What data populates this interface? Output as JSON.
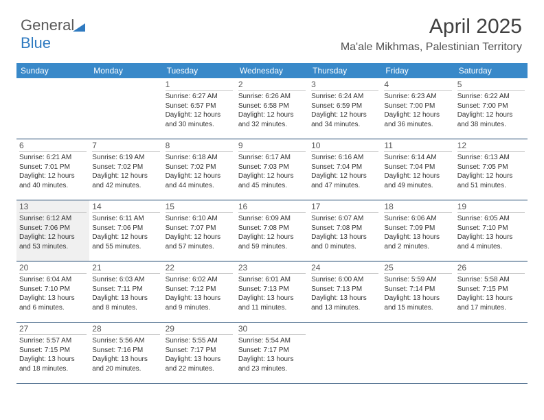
{
  "logo": {
    "word1": "General",
    "word2": "Blue"
  },
  "title": "April 2025",
  "subtitle": "Ma'ale Mikhmas, Palestinian Territory",
  "colors": {
    "header_bg": "#3989c9",
    "header_text": "#ffffff",
    "row_border": "#17406a",
    "shaded_bg": "#f0f0f0",
    "logo_blue": "#2f7ac0"
  },
  "day_headers": [
    "Sunday",
    "Monday",
    "Tuesday",
    "Wednesday",
    "Thursday",
    "Friday",
    "Saturday"
  ],
  "weeks": [
    [
      {
        "empty": true
      },
      {
        "empty": true
      },
      {
        "num": "1",
        "sunrise": "6:27 AM",
        "sunset": "6:57 PM",
        "daylight": "12 hours and 30 minutes."
      },
      {
        "num": "2",
        "sunrise": "6:26 AM",
        "sunset": "6:58 PM",
        "daylight": "12 hours and 32 minutes."
      },
      {
        "num": "3",
        "sunrise": "6:24 AM",
        "sunset": "6:59 PM",
        "daylight": "12 hours and 34 minutes."
      },
      {
        "num": "4",
        "sunrise": "6:23 AM",
        "sunset": "7:00 PM",
        "daylight": "12 hours and 36 minutes."
      },
      {
        "num": "5",
        "sunrise": "6:22 AM",
        "sunset": "7:00 PM",
        "daylight": "12 hours and 38 minutes."
      }
    ],
    [
      {
        "num": "6",
        "sunrise": "6:21 AM",
        "sunset": "7:01 PM",
        "daylight": "12 hours and 40 minutes."
      },
      {
        "num": "7",
        "sunrise": "6:19 AM",
        "sunset": "7:02 PM",
        "daylight": "12 hours and 42 minutes."
      },
      {
        "num": "8",
        "sunrise": "6:18 AM",
        "sunset": "7:02 PM",
        "daylight": "12 hours and 44 minutes."
      },
      {
        "num": "9",
        "sunrise": "6:17 AM",
        "sunset": "7:03 PM",
        "daylight": "12 hours and 45 minutes."
      },
      {
        "num": "10",
        "sunrise": "6:16 AM",
        "sunset": "7:04 PM",
        "daylight": "12 hours and 47 minutes."
      },
      {
        "num": "11",
        "sunrise": "6:14 AM",
        "sunset": "7:04 PM",
        "daylight": "12 hours and 49 minutes."
      },
      {
        "num": "12",
        "sunrise": "6:13 AM",
        "sunset": "7:05 PM",
        "daylight": "12 hours and 51 minutes."
      }
    ],
    [
      {
        "num": "13",
        "sunrise": "6:12 AM",
        "sunset": "7:06 PM",
        "daylight": "12 hours and 53 minutes.",
        "shaded": true
      },
      {
        "num": "14",
        "sunrise": "6:11 AM",
        "sunset": "7:06 PM",
        "daylight": "12 hours and 55 minutes."
      },
      {
        "num": "15",
        "sunrise": "6:10 AM",
        "sunset": "7:07 PM",
        "daylight": "12 hours and 57 minutes."
      },
      {
        "num": "16",
        "sunrise": "6:09 AM",
        "sunset": "7:08 PM",
        "daylight": "12 hours and 59 minutes."
      },
      {
        "num": "17",
        "sunrise": "6:07 AM",
        "sunset": "7:08 PM",
        "daylight": "13 hours and 0 minutes."
      },
      {
        "num": "18",
        "sunrise": "6:06 AM",
        "sunset": "7:09 PM",
        "daylight": "13 hours and 2 minutes."
      },
      {
        "num": "19",
        "sunrise": "6:05 AM",
        "sunset": "7:10 PM",
        "daylight": "13 hours and 4 minutes."
      }
    ],
    [
      {
        "num": "20",
        "sunrise": "6:04 AM",
        "sunset": "7:10 PM",
        "daylight": "13 hours and 6 minutes."
      },
      {
        "num": "21",
        "sunrise": "6:03 AM",
        "sunset": "7:11 PM",
        "daylight": "13 hours and 8 minutes."
      },
      {
        "num": "22",
        "sunrise": "6:02 AM",
        "sunset": "7:12 PM",
        "daylight": "13 hours and 9 minutes."
      },
      {
        "num": "23",
        "sunrise": "6:01 AM",
        "sunset": "7:13 PM",
        "daylight": "13 hours and 11 minutes."
      },
      {
        "num": "24",
        "sunrise": "6:00 AM",
        "sunset": "7:13 PM",
        "daylight": "13 hours and 13 minutes."
      },
      {
        "num": "25",
        "sunrise": "5:59 AM",
        "sunset": "7:14 PM",
        "daylight": "13 hours and 15 minutes."
      },
      {
        "num": "26",
        "sunrise": "5:58 AM",
        "sunset": "7:15 PM",
        "daylight": "13 hours and 17 minutes."
      }
    ],
    [
      {
        "num": "27",
        "sunrise": "5:57 AM",
        "sunset": "7:15 PM",
        "daylight": "13 hours and 18 minutes."
      },
      {
        "num": "28",
        "sunrise": "5:56 AM",
        "sunset": "7:16 PM",
        "daylight": "13 hours and 20 minutes."
      },
      {
        "num": "29",
        "sunrise": "5:55 AM",
        "sunset": "7:17 PM",
        "daylight": "13 hours and 22 minutes."
      },
      {
        "num": "30",
        "sunrise": "5:54 AM",
        "sunset": "7:17 PM",
        "daylight": "13 hours and 23 minutes."
      },
      {
        "empty": true
      },
      {
        "empty": true
      },
      {
        "empty": true
      }
    ]
  ],
  "labels": {
    "sunrise": "Sunrise: ",
    "sunset": "Sunset: ",
    "daylight": "Daylight: "
  }
}
